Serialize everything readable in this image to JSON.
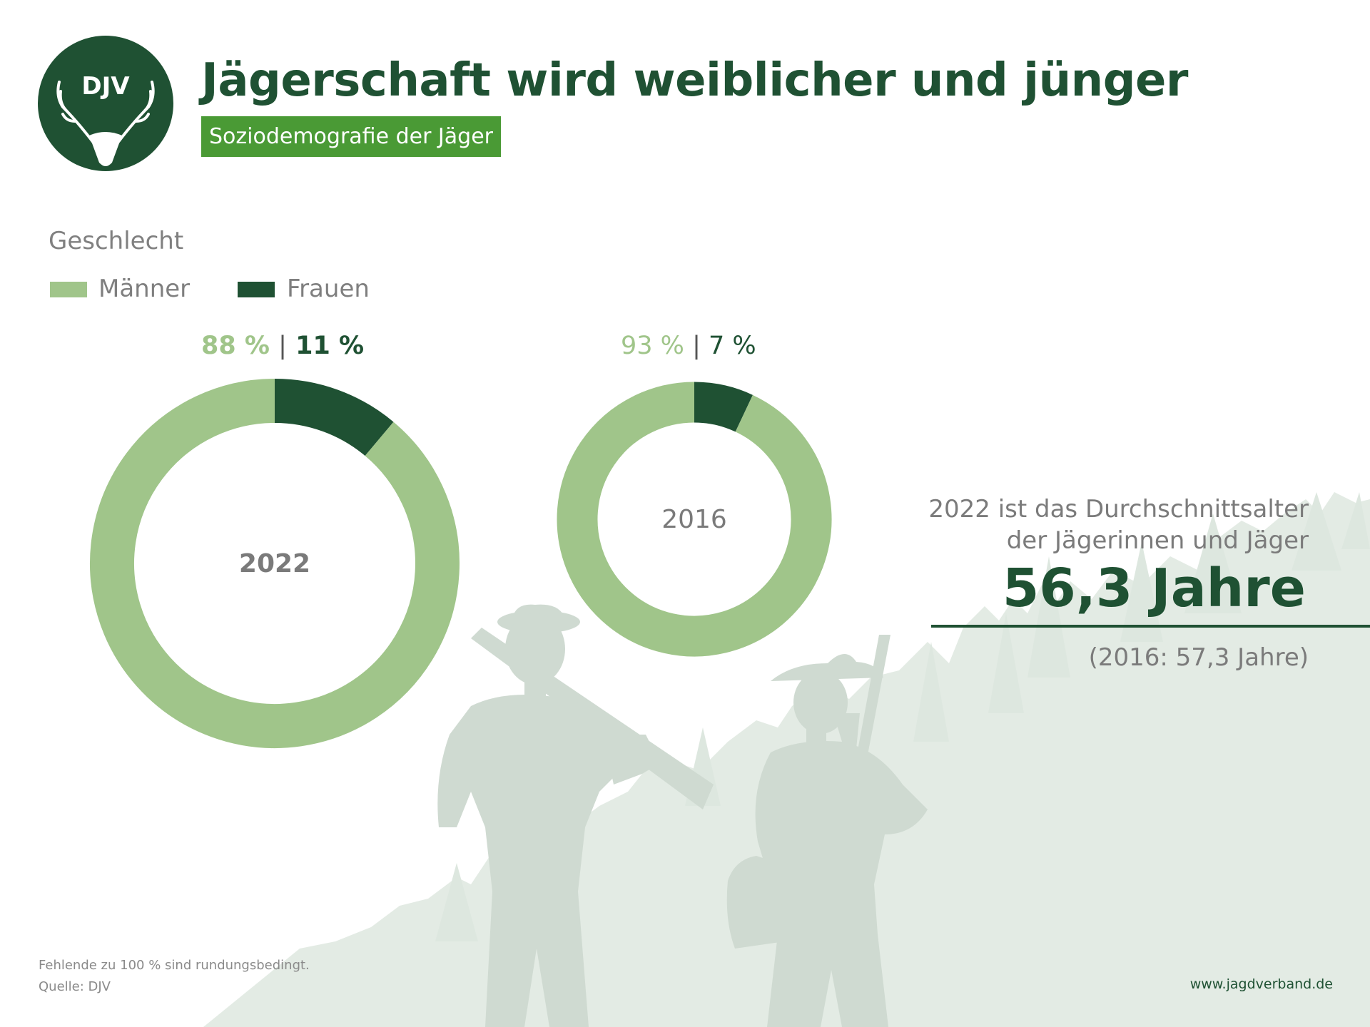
{
  "header": {
    "logo_text": "DJV",
    "title": "Jägerschaft wird weiblicher und jünger",
    "subtitle": "Soziodemografie der Jäger"
  },
  "colors": {
    "maenner": "#a0c58a",
    "frauen": "#1f5133",
    "accent": "#4a9a35",
    "text_gray": "#7f7f7f"
  },
  "chart_data": [
    {
      "type": "pie",
      "title": "Geschlecht",
      "center_label": "2022",
      "categories": [
        "Männer",
        "Frauen"
      ],
      "values": [
        88,
        11
      ],
      "labels": {
        "maenner": "88 %",
        "separator": "|",
        "frauen": "11 %"
      }
    },
    {
      "type": "pie",
      "center_label": "2016",
      "categories": [
        "Männer",
        "Frauen"
      ],
      "values": [
        93,
        7
      ],
      "labels": {
        "maenner": "93 %",
        "separator": "|",
        "frauen": "7 %"
      }
    }
  ],
  "legend": {
    "section_title": "Geschlecht",
    "items": [
      {
        "label": "Männer",
        "color": "#a0c58a"
      },
      {
        "label": "Frauen",
        "color": "#1f5133"
      }
    ]
  },
  "age": {
    "line1": "2022 ist das Durchschnittsalter",
    "line2": "der Jägerinnen und Jäger",
    "value": "56,3 Jahre",
    "previous": "(2016: 57,3 Jahre)"
  },
  "footer": {
    "note": "Fehlende zu 100 % sind rundungsbedingt.",
    "source": "Quelle: DJV",
    "website": "www.jagdverband.de"
  }
}
